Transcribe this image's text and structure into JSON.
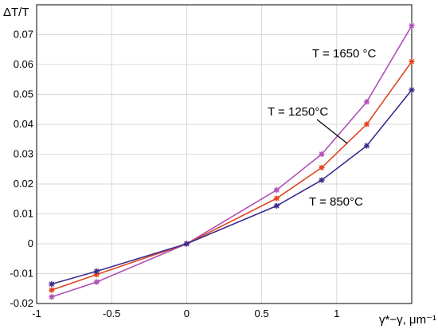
{
  "chart_data": {
    "type": "line",
    "xlabel": "γ*−γ, μm⁻¹",
    "ylabel": "ΔT/T",
    "xlim": [
      -1,
      1.2
    ],
    "ylim": [
      -0.02,
      0.08
    ],
    "x_ticks": [
      -1,
      -0.5,
      0,
      0.5,
      1
    ],
    "y_ticks": [
      -0.02,
      -0.01,
      0,
      0.01,
      0.02,
      0.03,
      0.04,
      0.05,
      0.06,
      0.07
    ],
    "x_tick_labels": [
      "-1",
      "-0.5",
      "0",
      "0.5",
      "1"
    ],
    "y_tick_labels": [
      "-0.02",
      "-0.01",
      "0",
      "0.01",
      "0.02",
      "0.03",
      "0.04",
      "0.05",
      "0.06",
      "0.07"
    ],
    "grid": true,
    "series": [
      {
        "name": "T = 1650 °C",
        "color": "#b04fb8",
        "x": [
          -0.9,
          -0.6,
          0,
          0.6,
          0.9,
          1.2,
          1.5
        ],
        "y": [
          -0.0178,
          -0.0128,
          0,
          0.018,
          0.03,
          0.0475,
          0.073
        ]
      },
      {
        "name": "T = 1250°C",
        "color": "#e0451e",
        "marker_color": "#e0451e",
        "x": [
          -0.9,
          -0.6,
          0,
          0.6,
          0.9,
          1.2,
          1.5
        ],
        "y": [
          -0.0155,
          -0.0103,
          0,
          0.0152,
          0.0255,
          0.04,
          0.061
        ]
      },
      {
        "name": "T = 850°C",
        "color": "#3d2d8c",
        "x": [
          -0.9,
          -0.6,
          0,
          0.6,
          0.9,
          1.2,
          1.5
        ],
        "y": [
          -0.0135,
          -0.0092,
          0,
          0.0127,
          0.0213,
          0.0328,
          0.0515
        ]
      }
    ],
    "annotations": [
      {
        "text": "T = 1650 °C"
      },
      {
        "text": "T = 1250°C"
      },
      {
        "text": "T = 850°C"
      }
    ]
  }
}
